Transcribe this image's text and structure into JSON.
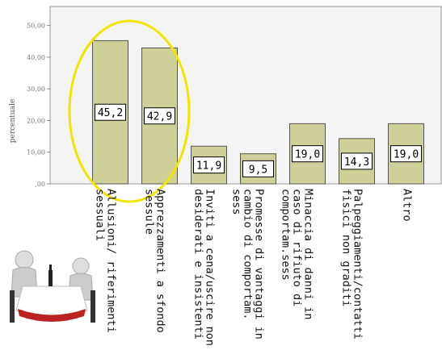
{
  "chart_data": {
    "type": "bar",
    "y_label": "percentuale",
    "categories": [
      "Allusioni/ riferimenti sessuali",
      "Apprezzamenti a sfondo sessule",
      "Inviti a cena/uscire non desiderati e insistenti",
      "Promesse di vantaggi in cambio di comportam. sess",
      "Minaccia di danni in caso di rifiuto di comportam.sess",
      "Palpeggiamenti/contatti fisici non graditi",
      "Altro"
    ],
    "values": [
      45.2,
      42.9,
      11.9,
      9.5,
      19.0,
      14.3,
      19.0
    ],
    "value_labels": [
      "45,2",
      "42,9",
      "11,9",
      "9,5",
      "19,0",
      "14,3",
      "19,0"
    ],
    "color": "#cfcf99",
    "ylim": [
      0,
      56
    ],
    "yticks": [
      {
        "value": 0,
        "label": ",00"
      },
      {
        "value": 10,
        "label": "10,00"
      },
      {
        "value": 20,
        "label": "20,00"
      },
      {
        "value": 30,
        "label": "30,00"
      },
      {
        "value": 40,
        "label": "40,00"
      },
      {
        "value": 50,
        "label": "50,00"
      }
    ]
  }
}
